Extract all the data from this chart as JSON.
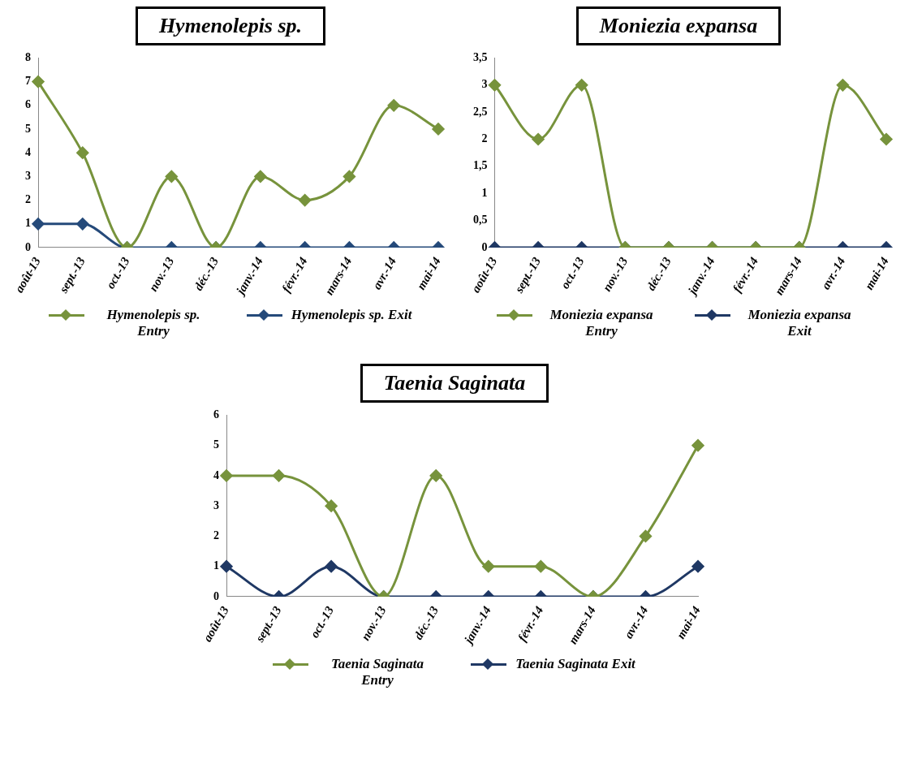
{
  "chart_data": [
    {
      "type": "line",
      "title": "Hymenolepis sp.",
      "categories": [
        "août-13",
        "sept.-13",
        "oct.-13",
        "nov.-13",
        "déc.-13",
        "janv.-14",
        "févr.-14",
        "mars-14",
        "avr.-14",
        "mai-14"
      ],
      "series": [
        {
          "name": "Hymenolepis sp. Entry",
          "color": "#77933c",
          "values": [
            7,
            4,
            0,
            3,
            0,
            3,
            2,
            3,
            6,
            5
          ]
        },
        {
          "name": "Hymenolepis sp. Exit",
          "color": "#254a7a",
          "values": [
            1,
            1,
            0,
            0,
            0,
            0,
            0,
            0,
            0,
            0
          ]
        }
      ],
      "ylim": [
        0,
        8
      ],
      "yticks": [
        0,
        1,
        2,
        3,
        4,
        5,
        6,
        7,
        8
      ],
      "grid": false,
      "legend": "bottom",
      "marker": "diamond"
    },
    {
      "type": "line",
      "title": "Moniezia expansa",
      "categories": [
        "août-13",
        "sept.-13",
        "oct.-13",
        "nov.-13",
        "déc.-13",
        "janv.-14",
        "févr.-14",
        "mars-14",
        "avr.-14",
        "mai-14"
      ],
      "series": [
        {
          "name": "Moniezia expansa Entry",
          "color": "#77933c",
          "values": [
            3,
            2,
            3,
            0,
            0,
            0,
            0,
            0,
            3,
            2
          ]
        },
        {
          "name": "Moniezia expansa Exit",
          "color": "#1f3864",
          "values": [
            0,
            0,
            0,
            0,
            0,
            0,
            0,
            0,
            0,
            0
          ]
        }
      ],
      "ylim": [
        0,
        3.5
      ],
      "yticks": [
        0,
        {
          "value": 0.5,
          "label": "0,5"
        },
        1,
        {
          "value": 1.5,
          "label": "1,5"
        },
        2,
        {
          "value": 2.5,
          "label": "2,5"
        },
        3,
        {
          "value": 3.5,
          "label": "3,5"
        }
      ],
      "grid": false,
      "legend": "bottom",
      "marker": "diamond"
    },
    {
      "type": "line",
      "title": "Taenia Saginata",
      "categories": [
        "août-13",
        "sept.-13",
        "oct.-13",
        "nov.-13",
        "déc.-13",
        "janv.-14",
        "févr.-14",
        "mars-14",
        "avr.-14",
        "mai-14"
      ],
      "series": [
        {
          "name": "Taenia Saginata Entry",
          "color": "#77933c",
          "values": [
            4,
            4,
            3,
            0,
            4,
            1,
            1,
            0,
            2,
            5
          ]
        },
        {
          "name": "Taenia Saginata Exit",
          "color": "#1f3864",
          "values": [
            1,
            0,
            1,
            0,
            0,
            0,
            0,
            0,
            0,
            1
          ]
        }
      ],
      "ylim": [
        0,
        6
      ],
      "yticks": [
        0,
        1,
        2,
        3,
        4,
        5,
        6
      ],
      "grid": false,
      "legend": "bottom",
      "marker": "diamond"
    }
  ]
}
